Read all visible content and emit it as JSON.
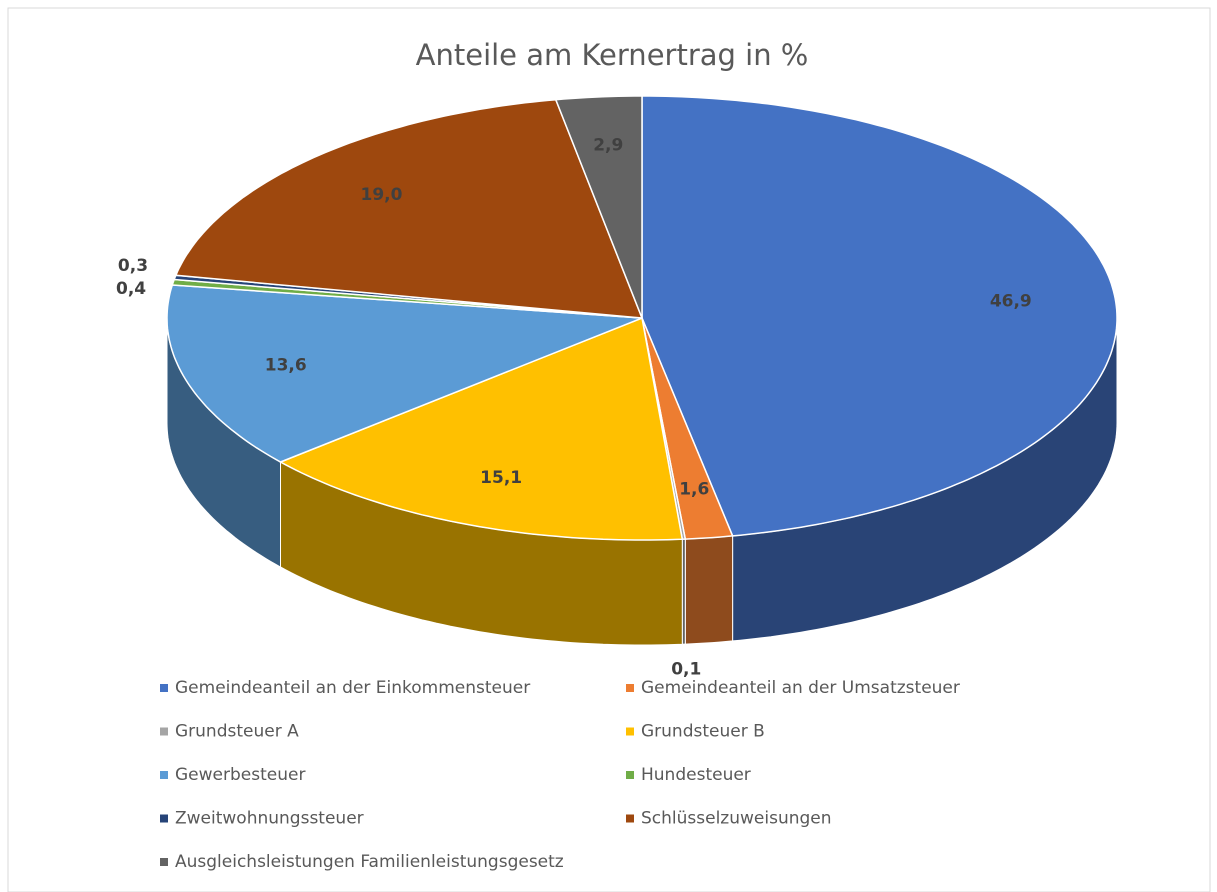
{
  "chart_data": {
    "type": "pie",
    "title": "Anteile am Kernertrag in %",
    "categories": [
      "Gemeindeanteil an der Einkommensteuer",
      "Gemeindeanteil an der Umsatzsteuer",
      "Grundsteuer A",
      "Grundsteuer B",
      "Gewerbesteuer",
      "Hundesteuer",
      "Zweitwohnungssteuer",
      "Schlüsselzuweisungen",
      "Ausgleichsleistungen Familienleistungsgesetz"
    ],
    "values": [
      46.9,
      1.6,
      0.1,
      15.1,
      13.6,
      0.4,
      0.3,
      19.0,
      2.9
    ],
    "value_labels": [
      "46,9",
      "1,6",
      "0,1",
      "15,1",
      "13,6",
      "0,4",
      "0,3",
      "19,0",
      "2,9"
    ],
    "colors": [
      "#4472c4",
      "#ed7d31",
      "#a5a5a5",
      "#ffc000",
      "#5b9bd5",
      "#70ad47",
      "#264478",
      "#9e480e",
      "#636363"
    ],
    "legend": "bottom"
  }
}
